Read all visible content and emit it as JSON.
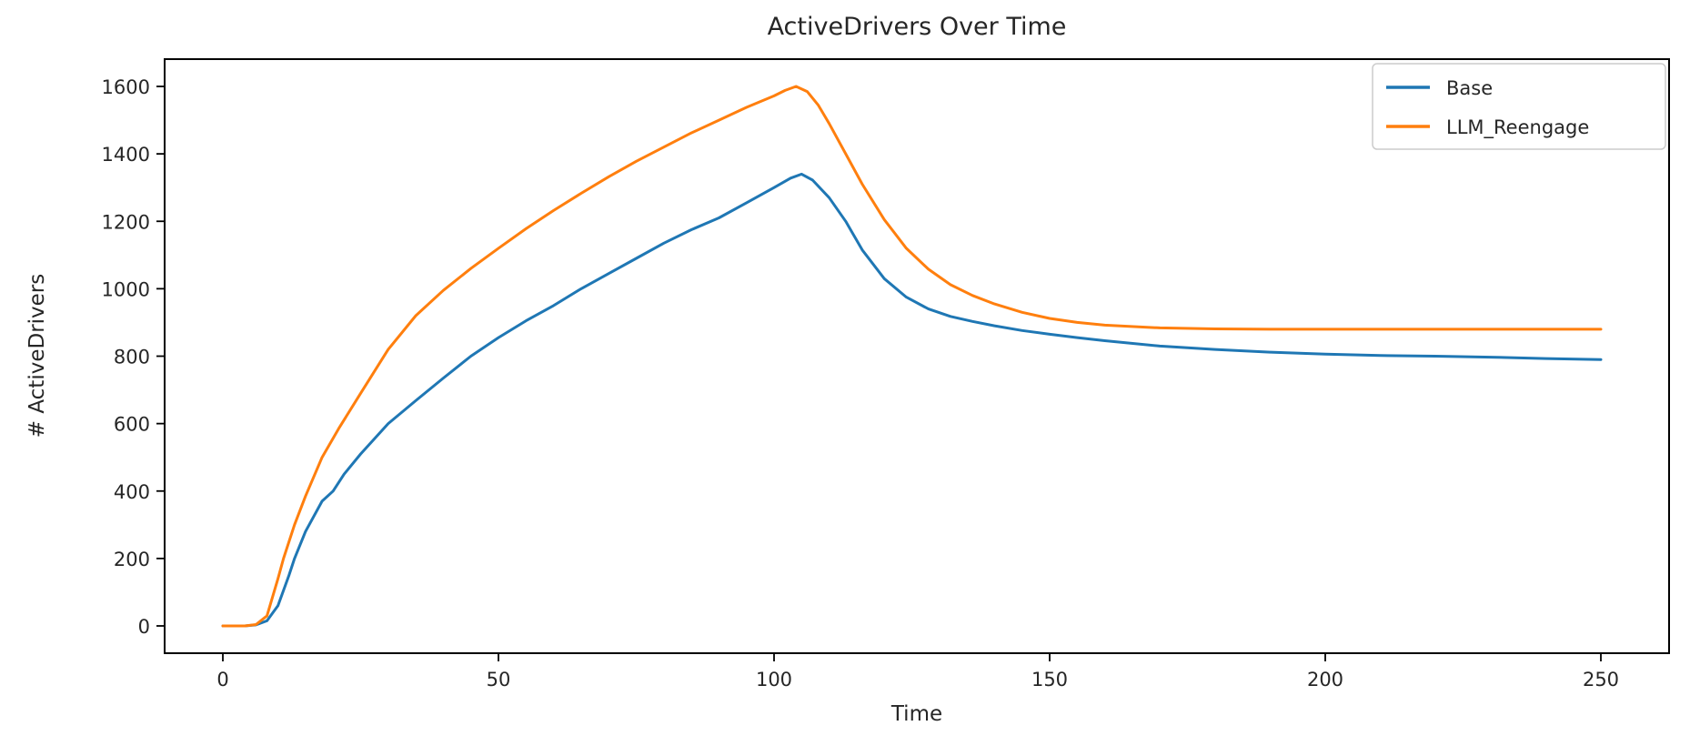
{
  "chart_data": {
    "type": "line",
    "title": "ActiveDrivers Over Time",
    "xlabel": "Time",
    "ylabel": "# ActiveDrivers",
    "xlim": [
      -12,
      262
    ],
    "ylim": [
      -80,
      1680
    ],
    "xticks": [
      0,
      50,
      100,
      150,
      200,
      250
    ],
    "yticks": [
      0,
      200,
      400,
      600,
      800,
      1000,
      1200,
      1400,
      1600
    ],
    "grid": false,
    "legend_position": "upper right",
    "background_color": "#ffffff",
    "spine_color": "#000000",
    "series": [
      {
        "name": "Base",
        "color": "#1f77b4",
        "x": [
          0,
          2,
          4,
          6,
          8,
          10,
          12,
          13,
          15,
          18,
          20,
          22,
          25,
          30,
          35,
          40,
          45,
          50,
          55,
          60,
          65,
          70,
          75,
          80,
          85,
          90,
          95,
          100,
          103,
          105,
          107,
          110,
          113,
          116,
          120,
          124,
          128,
          132,
          136,
          140,
          145,
          150,
          155,
          160,
          170,
          180,
          190,
          200,
          210,
          220,
          230,
          240,
          250
        ],
        "y": [
          0,
          0,
          0,
          3,
          15,
          60,
          150,
          200,
          280,
          370,
          400,
          450,
          510,
          600,
          668,
          735,
          800,
          855,
          905,
          950,
          1000,
          1045,
          1090,
          1135,
          1175,
          1210,
          1255,
          1300,
          1328,
          1340,
          1322,
          1270,
          1200,
          1115,
          1030,
          975,
          940,
          918,
          903,
          890,
          876,
          865,
          855,
          846,
          830,
          820,
          812,
          806,
          802,
          800,
          797,
          793,
          790
        ]
      },
      {
        "name": "LLM_Reengage",
        "color": "#ff7f0e",
        "x": [
          0,
          2,
          4,
          6,
          8,
          10,
          11,
          13,
          15,
          18,
          21,
          25,
          30,
          35,
          40,
          45,
          50,
          55,
          60,
          65,
          70,
          75,
          80,
          85,
          90,
          95,
          100,
          102,
          104,
          106,
          108,
          110,
          113,
          116,
          120,
          124,
          128,
          132,
          136,
          140,
          145,
          150,
          155,
          160,
          170,
          180,
          190,
          200,
          210,
          220,
          230,
          240,
          250
        ],
        "y": [
          0,
          0,
          0,
          4,
          30,
          140,
          200,
          300,
          385,
          500,
          585,
          690,
          820,
          920,
          995,
          1060,
          1120,
          1178,
          1232,
          1283,
          1332,
          1378,
          1420,
          1462,
          1500,
          1538,
          1572,
          1588,
          1600,
          1585,
          1545,
          1490,
          1400,
          1310,
          1205,
          1120,
          1058,
          1012,
          980,
          955,
          930,
          912,
          900,
          892,
          884,
          881,
          880,
          880,
          880,
          880,
          880,
          880,
          880
        ]
      }
    ]
  }
}
